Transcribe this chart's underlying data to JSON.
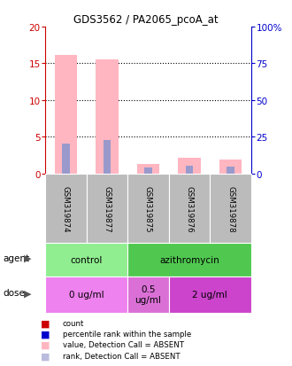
{
  "title": "GDS3562 / PA2065_pcoA_at",
  "samples": [
    "GSM319874",
    "GSM319877",
    "GSM319875",
    "GSM319876",
    "GSM319878"
  ],
  "pink_bars": [
    16.2,
    15.5,
    1.3,
    2.1,
    1.9
  ],
  "blue_bars": [
    4.1,
    4.6,
    0.85,
    1.0,
    0.9
  ],
  "left_ylim": [
    0,
    20
  ],
  "right_ylim": [
    0,
    100
  ],
  "left_yticks": [
    0,
    5,
    10,
    15,
    20
  ],
  "right_yticks": [
    0,
    25,
    50,
    75,
    100
  ],
  "right_yticklabels": [
    "0",
    "25",
    "50",
    "75",
    "100%"
  ],
  "agent_row": [
    {
      "label": "control",
      "span": [
        0,
        2
      ],
      "color": "#90EE90"
    },
    {
      "label": "azithromycin",
      "span": [
        2,
        5
      ],
      "color": "#50C850"
    }
  ],
  "dose_row": [
    {
      "label": "0 ug/ml",
      "span": [
        0,
        2
      ],
      "color": "#EE82EE"
    },
    {
      "label": "0.5\nug/ml",
      "span": [
        2,
        3
      ],
      "color": "#DA70D6"
    },
    {
      "label": "2 ug/ml",
      "span": [
        3,
        5
      ],
      "color": "#CC44CC"
    }
  ],
  "pink_color": "#FFB6C1",
  "blue_color": "#9999CC",
  "legend_items": [
    {
      "color": "#CC0000",
      "label": "count"
    },
    {
      "color": "#0000CC",
      "label": "percentile rank within the sample"
    },
    {
      "color": "#FFB6C1",
      "label": "value, Detection Call = ABSENT"
    },
    {
      "color": "#BBBBDD",
      "label": "rank, Detection Call = ABSENT"
    }
  ],
  "sample_box_color": "#BBBBBB",
  "left_axis_color": "#CC0000",
  "right_axis_color": "#0000CC",
  "n_samples": 5
}
